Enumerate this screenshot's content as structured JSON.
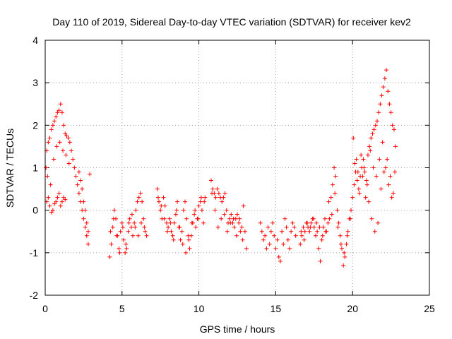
{
  "chart_data": {
    "type": "scatter",
    "title": "Day 110 of 2019, Sidereal Day-to-day VTEC variation (SDTVAR) for receiver kev2",
    "xlabel": "GPS time / hours",
    "ylabel": "SDTVAR / TECUs",
    "xlim": [
      0,
      25
    ],
    "ylim": [
      -2,
      4
    ],
    "xticks": [
      0,
      5,
      10,
      15,
      20,
      25
    ],
    "yticks": [
      -2,
      -1,
      0,
      1,
      2,
      3,
      4
    ],
    "grid": true,
    "marker": "plus",
    "color": "#ff0000",
    "series": [
      {
        "name": "kev2",
        "x": [
          0.05,
          0.1,
          0.2,
          0.3,
          0.4,
          0.5,
          0.6,
          0.7,
          0.8,
          0.9,
          1.0,
          1.1,
          1.2,
          1.3,
          1.4,
          1.5,
          1.6,
          1.7,
          1.8,
          1.9,
          2.0,
          2.1,
          2.2,
          2.3,
          2.4,
          2.5,
          2.6,
          2.7,
          2.8,
          2.9,
          0.1,
          0.2,
          0.3,
          0.4,
          0.5,
          0.6,
          0.7,
          0.8,
          0.9,
          1.0,
          1.1,
          1.2,
          1.3,
          0.15,
          0.35,
          0.55,
          0.75,
          0.95,
          1.15,
          1.35,
          1.55,
          2.2,
          2.3,
          2.4,
          2.5,
          2.6,
          2.7,
          2.8,
          4.2,
          4.3,
          4.4,
          4.5,
          4.6,
          4.7,
          4.8,
          4.9,
          5.0,
          5.1,
          5.2,
          5.3,
          5.4,
          5.5,
          5.6,
          5.7,
          5.8,
          5.9,
          6.0,
          6.1,
          6.2,
          6.3,
          6.4,
          6.5,
          6.6,
          4.25,
          4.45,
          4.65,
          4.85,
          5.05,
          5.25,
          5.45,
          5.65,
          5.85,
          6.05,
          6.25,
          6.45,
          7.3,
          7.4,
          7.5,
          7.6,
          7.7,
          7.8,
          7.9,
          8.0,
          8.1,
          8.2,
          8.3,
          8.4,
          8.5,
          8.6,
          8.7,
          8.8,
          8.9,
          9.0,
          9.1,
          9.2,
          9.3,
          9.4,
          9.5,
          9.6,
          9.7,
          9.8,
          9.9,
          10.0,
          10.1,
          10.2,
          10.3,
          10.4,
          7.35,
          7.55,
          7.75,
          7.95,
          8.15,
          8.35,
          8.55,
          8.75,
          8.95,
          9.15,
          9.35,
          9.55,
          9.75,
          9.95,
          10.15,
          10.35,
          10.8,
          10.9,
          11.0,
          11.1,
          11.2,
          11.3,
          11.4,
          11.5,
          11.6,
          11.7,
          11.8,
          11.9,
          12.0,
          12.1,
          12.2,
          12.3,
          12.4,
          12.5,
          12.6,
          12.7,
          12.8,
          12.9,
          13.0,
          13.1,
          10.85,
          11.05,
          11.25,
          11.45,
          11.65,
          11.85,
          12.05,
          12.25,
          12.45,
          12.65,
          12.85,
          14.0,
          14.1,
          14.2,
          14.3,
          14.4,
          14.5,
          14.6,
          14.7,
          14.8,
          14.9,
          15.0,
          15.1,
          15.2,
          15.3,
          15.4,
          15.5,
          15.6,
          15.7,
          15.8,
          15.9,
          16.0,
          16.1,
          16.2,
          16.3,
          16.6,
          16.7,
          16.8,
          16.9,
          17.0,
          17.1,
          17.2,
          17.3,
          17.4,
          17.5,
          17.6,
          17.7,
          17.8,
          17.9,
          18.0,
          18.1,
          18.2,
          18.3,
          16.65,
          16.85,
          17.05,
          17.25,
          17.45,
          17.65,
          17.85,
          18.05,
          18.25,
          18.4,
          18.5,
          18.6,
          18.7,
          18.8,
          18.9,
          19.0,
          19.1,
          19.2,
          19.3,
          19.4,
          19.5,
          19.6,
          19.7,
          19.8,
          19.9,
          18.45,
          18.65,
          18.85,
          19.05,
          19.25,
          19.45,
          19.65,
          19.85,
          20.0,
          20.1,
          20.2,
          20.3,
          20.4,
          20.5,
          20.6,
          20.7,
          20.8,
          20.9,
          21.0,
          21.1,
          21.2,
          21.3,
          21.4,
          21.5,
          21.6,
          21.7,
          21.8,
          21.9,
          22.0,
          22.1,
          22.2,
          22.3,
          22.4,
          22.5,
          22.6,
          22.7,
          22.8,
          20.05,
          20.25,
          20.45,
          20.65,
          20.85,
          21.05,
          21.25,
          21.45,
          21.65,
          21.85,
          22.05,
          22.25,
          22.45,
          22.65,
          20.15,
          20.35,
          20.55,
          20.75,
          20.95,
          21.15,
          21.35,
          21.55,
          21.75,
          21.95,
          22.15,
          22.35,
          22.55,
          22.75
        ],
        "y": [
          1.0,
          1.4,
          1.6,
          1.7,
          1.9,
          2.0,
          2.1,
          2.2,
          2.3,
          2.35,
          2.5,
          2.3,
          2.0,
          1.8,
          1.75,
          1.7,
          1.6,
          1.4,
          1.2,
          1.0,
          0.8,
          0.6,
          0.4,
          0.2,
          0.0,
          -0.2,
          -0.4,
          -0.6,
          -0.8,
          0.85,
          0.2,
          0.3,
          0.1,
          -0.05,
          0.0,
          0.15,
          0.2,
          0.3,
          0.4,
          0.1,
          0.2,
          0.3,
          0.25,
          0.8,
          0.6,
          1.2,
          1.5,
          1.6,
          1.4,
          1.3,
          1.1,
          0.9,
          0.7,
          0.5,
          0.2,
          0.0,
          -0.3,
          -0.5,
          -1.1,
          -0.8,
          -0.4,
          0.0,
          -0.2,
          -0.6,
          -0.9,
          -0.5,
          -0.3,
          -0.7,
          -1.0,
          -0.9,
          -0.5,
          -0.2,
          -0.4,
          -0.6,
          -0.3,
          0.0,
          0.2,
          0.3,
          0.4,
          0.2,
          -0.2,
          -0.5,
          -0.6,
          -0.5,
          -0.2,
          -0.6,
          -1.0,
          -0.4,
          -0.8,
          -0.3,
          -0.1,
          -0.4,
          -0.6,
          -0.3,
          -0.4,
          0.5,
          0.2,
          0.0,
          -0.2,
          0.3,
          0.1,
          -0.3,
          -0.4,
          -0.2,
          -0.5,
          -0.6,
          -0.3,
          -0.1,
          0.2,
          -0.4,
          -0.7,
          -0.5,
          0.0,
          0.2,
          -0.2,
          -0.6,
          -0.9,
          -0.6,
          -0.3,
          -0.1,
          -0.4,
          -0.2,
          0.1,
          0.2,
          0.0,
          -0.3,
          0.3,
          0.3,
          0.1,
          -0.2,
          -0.5,
          -0.3,
          -0.7,
          0.0,
          -0.4,
          -0.8,
          -1.0,
          -0.7,
          -0.3,
          0.0,
          -0.2,
          0.3,
          0.2,
          0.7,
          0.5,
          0.4,
          0.3,
          0.5,
          0.4,
          0.3,
          0.2,
          0.3,
          0.4,
          0.0,
          -0.3,
          -0.2,
          -0.1,
          -0.3,
          -0.4,
          -0.2,
          -0.1,
          -0.3,
          -0.5,
          -0.4,
          0.1,
          -0.5,
          -0.9,
          0.4,
          0.0,
          -0.4,
          -0.2,
          -0.1,
          -0.5,
          -0.3,
          -0.2,
          -0.6,
          -0.2,
          -0.7,
          -0.3,
          -0.5,
          -0.7,
          -0.6,
          -0.9,
          -0.4,
          -0.8,
          -0.5,
          -0.3,
          -0.6,
          -0.9,
          -0.7,
          -1.1,
          -1.2,
          -0.5,
          -0.8,
          -0.2,
          -0.4,
          -0.7,
          -0.9,
          -0.5,
          -0.3,
          -0.4,
          -0.6,
          -0.8,
          -0.6,
          -0.4,
          -0.5,
          -0.3,
          -0.4,
          -0.5,
          -0.3,
          -0.2,
          -0.4,
          -0.6,
          -0.5,
          -0.9,
          -1.2,
          -0.7,
          -0.4,
          -0.2,
          -0.5,
          -0.5,
          -0.7,
          -0.3,
          -0.4,
          -0.2,
          -0.3,
          -0.4,
          -0.6,
          -0.5,
          -0.3,
          -0.2,
          0.3,
          0.6,
          1.0,
          0.8,
          0.0,
          -0.3,
          -0.6,
          -0.9,
          -1.3,
          -1.1,
          -0.8,
          -0.5,
          -0.2,
          0.0,
          0.2,
          -0.1,
          0.4,
          -0.4,
          -0.8,
          -1.0,
          -0.6,
          -0.2,
          0.3,
          0.6,
          0.9,
          0.7,
          0.5,
          0.8,
          1.0,
          1.2,
          0.9,
          0.7,
          1.3,
          1.5,
          1.7,
          1.8,
          1.9,
          2.0,
          2.1,
          2.3,
          2.5,
          2.7,
          2.9,
          3.1,
          3.3,
          2.8,
          2.5,
          2.3,
          2.0,
          1.9,
          1.5,
          1.7,
          1.2,
          0.4,
          0.8,
          0.3,
          0.2,
          -0.2,
          -0.5,
          -0.3,
          0.5,
          0.9,
          1.2,
          0.8,
          0.4,
          1.1,
          0.9,
          1.3,
          1.0,
          0.6,
          1.4,
          1.0,
          0.8,
          1.2,
          1.6,
          1.0,
          0.6,
          0.3,
          0.9
        ]
      }
    ]
  }
}
